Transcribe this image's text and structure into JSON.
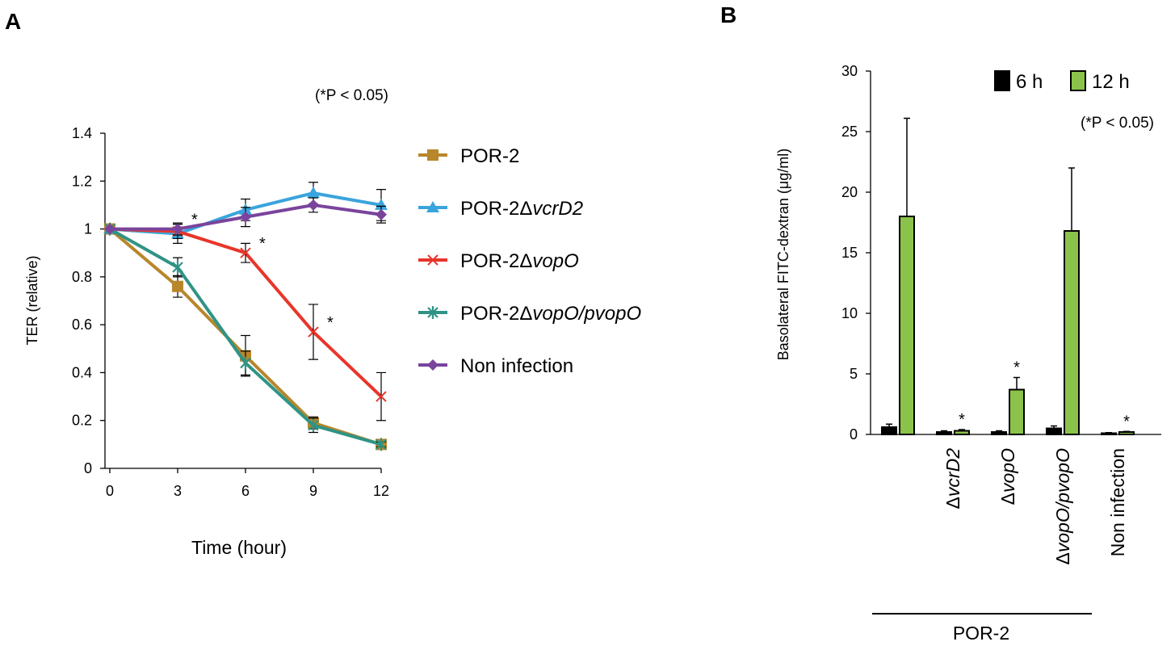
{
  "panel_a": {
    "label": "A",
    "significance_note": "(*P < 0.05)",
    "chart_data": {
      "type": "line",
      "xlabel": "Time (hour)",
      "ylabel": "TER (relative)",
      "x": [
        0,
        3,
        6,
        9,
        12
      ],
      "xlim": [
        0,
        12
      ],
      "ylim": [
        0,
        1.4
      ],
      "xticks": [
        "0",
        "3",
        "6",
        "9",
        "12"
      ],
      "yticks": [
        "0",
        "0.2",
        "0.4",
        "0.6",
        "0.8",
        "1",
        "1.2",
        "1.4"
      ],
      "grid": false,
      "legend_position": "right",
      "series": [
        {
          "name": "POR-2",
          "prefix": "POR-2",
          "italic": "",
          "color": "#b8862b",
          "marker": "square",
          "values": [
            1.0,
            0.76,
            0.47,
            0.19,
            0.1
          ],
          "errors": [
            0.0,
            0.045,
            0.085,
            0.025,
            0.01
          ]
        },
        {
          "name": "POR-2ΔvcrD2",
          "prefix": "POR-2Δ",
          "italic": "vcrD2",
          "color": "#3aa4dc",
          "marker": "triangle",
          "values": [
            1.0,
            0.98,
            1.08,
            1.15,
            1.1
          ],
          "errors": [
            0.0,
            0.04,
            0.045,
            0.045,
            0.065
          ]
        },
        {
          "name": "POR-2ΔvopO",
          "prefix": "POR-2Δ",
          "italic": "vopO",
          "color": "#e8352a",
          "marker": "x",
          "values": [
            1.0,
            0.99,
            0.9,
            0.57,
            0.3
          ],
          "errors": [
            0.0,
            0.03,
            0.04,
            0.115,
            0.1
          ]
        },
        {
          "name": "POR-2ΔvopO/pvopO",
          "prefix": "POR-2Δ",
          "italic": "vopO/pvopO",
          "color": "#2f9485",
          "marker": "star",
          "values": [
            1.0,
            0.84,
            0.44,
            0.18,
            0.1
          ],
          "errors": [
            0.0,
            0.04,
            0.05,
            0.03,
            0.01
          ]
        },
        {
          "name": "Non infection",
          "prefix": "Non infection",
          "italic": "",
          "color": "#7a449c",
          "marker": "diamond",
          "values": [
            1.0,
            1.0,
            1.05,
            1.1,
            1.06
          ],
          "errors": [
            0.0,
            0.025,
            0.04,
            0.03,
            0.035
          ]
        }
      ],
      "annotations": [
        {
          "text": "*",
          "x": 3,
          "y": 1.0
        },
        {
          "text": "*",
          "x": 6,
          "y": 0.9
        },
        {
          "text": "*",
          "x": 9,
          "y": 0.57
        }
      ]
    }
  },
  "panel_b": {
    "label": "B",
    "significance_note": "(*P < 0.05)",
    "group_label": "POR-2",
    "chart_data": {
      "type": "bar",
      "ylabel": "Basolateral FITC-dextran (μg/ml)",
      "ylim": [
        0,
        30
      ],
      "yticks": [
        "0",
        "5",
        "10",
        "15",
        "20",
        "25",
        "30"
      ],
      "grid": false,
      "legend_position": "top-right",
      "categories": [
        {
          "prefix": "",
          "italic": ""
        },
        {
          "prefix": "Δ",
          "italic": "vcrD2"
        },
        {
          "prefix": "Δ",
          "italic": "vopO"
        },
        {
          "prefix": "Δ",
          "italic": "vopO/pvopO"
        },
        {
          "prefix": "Non infection",
          "italic": ""
        }
      ],
      "series": [
        {
          "name": "6 h",
          "color": "#000000",
          "values": [
            0.6,
            0.2,
            0.2,
            0.5,
            0.1
          ],
          "errors": [
            0.25,
            0.1,
            0.1,
            0.2,
            0.05
          ]
        },
        {
          "name": "12 h",
          "color": "#8bc34a",
          "values": [
            18.0,
            0.3,
            3.7,
            16.8,
            0.2
          ],
          "errors": [
            8.1,
            0.1,
            1.0,
            5.2,
            0.05
          ]
        }
      ],
      "annotations": [
        {
          "text": "*",
          "category": 1,
          "series": 1
        },
        {
          "text": "*",
          "category": 2,
          "series": 1
        },
        {
          "text": "*",
          "category": 4,
          "series": 1
        }
      ]
    }
  }
}
